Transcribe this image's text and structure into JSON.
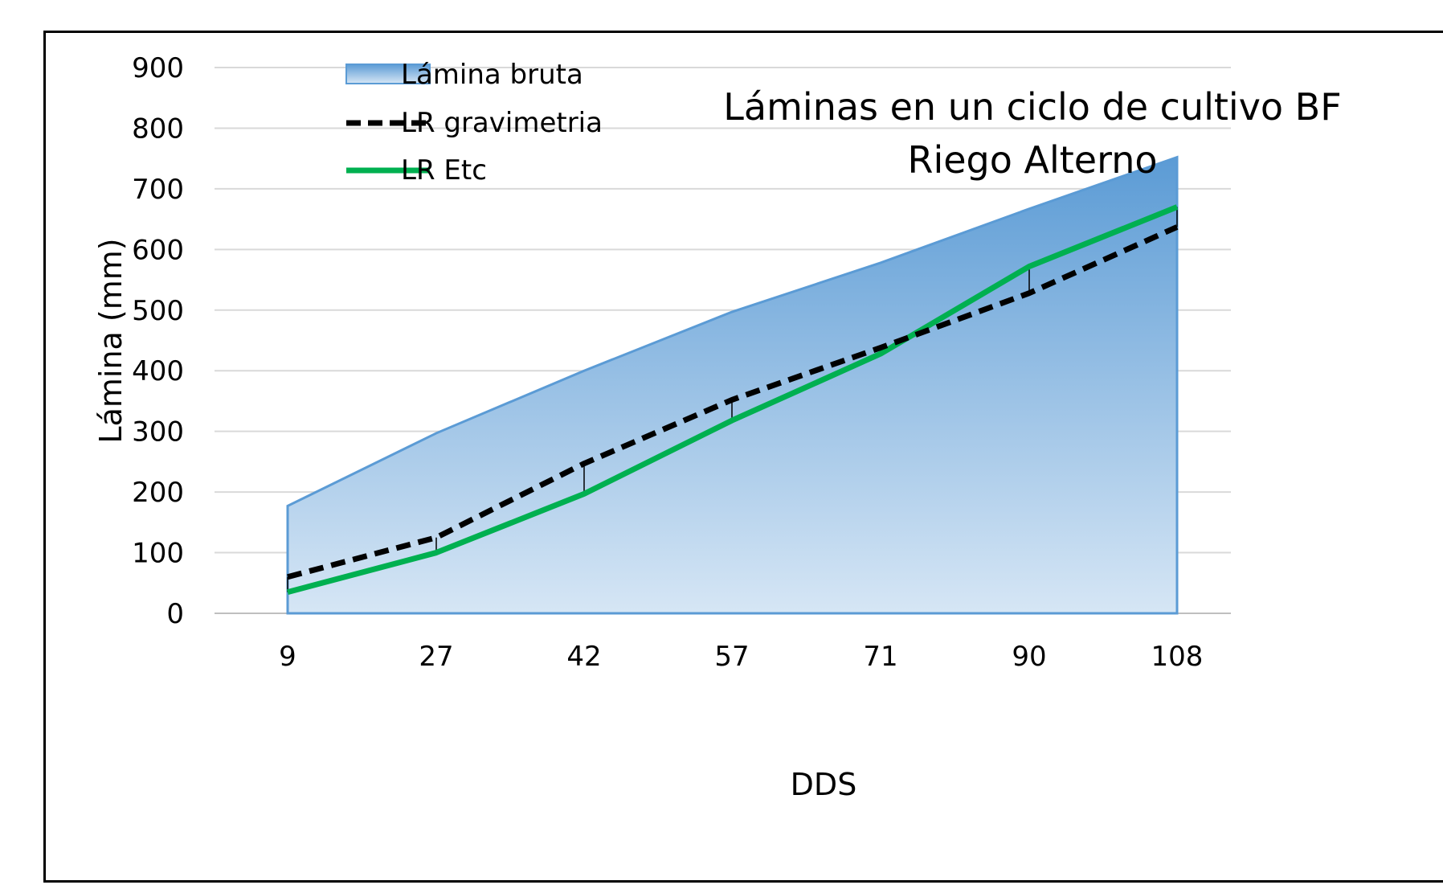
{
  "chart_data": {
    "type": "area",
    "title": [
      "Láminas en un ciclo de cultivo BF",
      "Riego Alterno"
    ],
    "xlabel": "DDS",
    "ylabel": "Lámina (mm)",
    "categories": [
      "9",
      "27",
      "42",
      "57",
      "71",
      "90",
      "108"
    ],
    "ylim": [
      0,
      900
    ],
    "yticks": [
      0,
      100,
      200,
      300,
      400,
      500,
      600,
      700,
      800,
      900
    ],
    "grid": true,
    "legend_position": "top-left",
    "series": [
      {
        "name": "Lámina bruta",
        "kind": "area",
        "color": "#6fa4d8",
        "values": [
          177,
          297,
          400,
          497,
          578,
          667,
          752
        ]
      },
      {
        "name": "LR gravimetria",
        "kind": "dashed-line",
        "color": "#000000",
        "values": [
          60,
          125,
          247,
          352,
          438,
          528,
          637
        ]
      },
      {
        "name": "LR Etc",
        "kind": "line",
        "color": "#00b050",
        "values": [
          35,
          100,
          197,
          318,
          428,
          572,
          670
        ]
      }
    ]
  }
}
